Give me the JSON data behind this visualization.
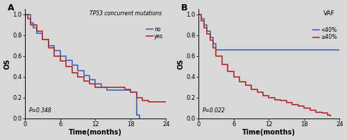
{
  "panel_A": {
    "title": "TP53 concurrent mutations",
    "pvalue": "P=0.348",
    "xlabel": "Time(months)",
    "ylabel": "OS",
    "xlim": [
      0,
      24
    ],
    "ylim": [
      0.0,
      1.05
    ],
    "xticks": [
      0,
      6,
      12,
      18,
      24
    ],
    "yticks": [
      0.0,
      0.2,
      0.4,
      0.6,
      0.8,
      1.0
    ],
    "legend_labels": [
      "no",
      "yes"
    ],
    "colors": [
      "#4b6cb7",
      "#b73232"
    ],
    "no_curve": {
      "times": [
        0,
        1,
        1.5,
        2,
        3,
        4,
        5,
        6,
        7,
        8,
        9,
        10,
        11,
        12,
        13,
        14,
        18,
        19,
        19.5
      ],
      "surv": [
        1.0,
        0.92,
        0.87,
        0.82,
        0.76,
        0.7,
        0.65,
        0.6,
        0.56,
        0.51,
        0.46,
        0.41,
        0.37,
        0.33,
        0.3,
        0.27,
        0.25,
        0.03,
        0.0
      ]
    },
    "yes_curve": {
      "times": [
        0,
        0.5,
        1,
        2,
        3,
        4,
        5,
        6,
        7,
        8,
        9,
        10,
        11,
        12,
        17,
        18,
        19,
        20,
        21,
        24
      ],
      "surv": [
        1.0,
        0.96,
        0.9,
        0.84,
        0.76,
        0.68,
        0.6,
        0.55,
        0.5,
        0.44,
        0.4,
        0.36,
        0.33,
        0.3,
        0.28,
        0.25,
        0.2,
        0.17,
        0.16,
        0.16
      ]
    }
  },
  "panel_B": {
    "title": "VAF",
    "pvalue": "P=0.022",
    "xlabel": "Time(months)",
    "ylabel": "OS",
    "xlim": [
      0,
      24
    ],
    "ylim": [
      0.0,
      1.05
    ],
    "xticks": [
      0,
      6,
      12,
      18,
      24
    ],
    "yticks": [
      0.0,
      0.2,
      0.4,
      0.6,
      0.8,
      1.0
    ],
    "legend_labels": [
      "<40%",
      "≥40%"
    ],
    "colors": [
      "#4b6cb7",
      "#b73232"
    ],
    "low_curve": {
      "times": [
        0,
        0.5,
        1.0,
        1.5,
        2.0,
        2.5,
        3.0,
        24.0
      ],
      "surv": [
        1.0,
        0.96,
        0.9,
        0.84,
        0.78,
        0.72,
        0.66,
        0.66
      ]
    },
    "high_curve": {
      "times": [
        0,
        0.5,
        1.0,
        1.5,
        2.0,
        2.5,
        3.0,
        4.0,
        5.0,
        6.0,
        7.0,
        8.0,
        9.0,
        10.0,
        11.0,
        12.0,
        13.0,
        14.0,
        15.0,
        16.0,
        17.0,
        18.0,
        19.0,
        20.0,
        21.0,
        22.0,
        22.5
      ],
      "surv": [
        1.0,
        0.94,
        0.87,
        0.81,
        0.75,
        0.68,
        0.6,
        0.52,
        0.45,
        0.4,
        0.35,
        0.32,
        0.28,
        0.25,
        0.22,
        0.2,
        0.18,
        0.17,
        0.15,
        0.13,
        0.12,
        0.1,
        0.08,
        0.06,
        0.05,
        0.03,
        0.02
      ]
    }
  },
  "bg_color": "#d8d8d8",
  "line_width": 1.3
}
